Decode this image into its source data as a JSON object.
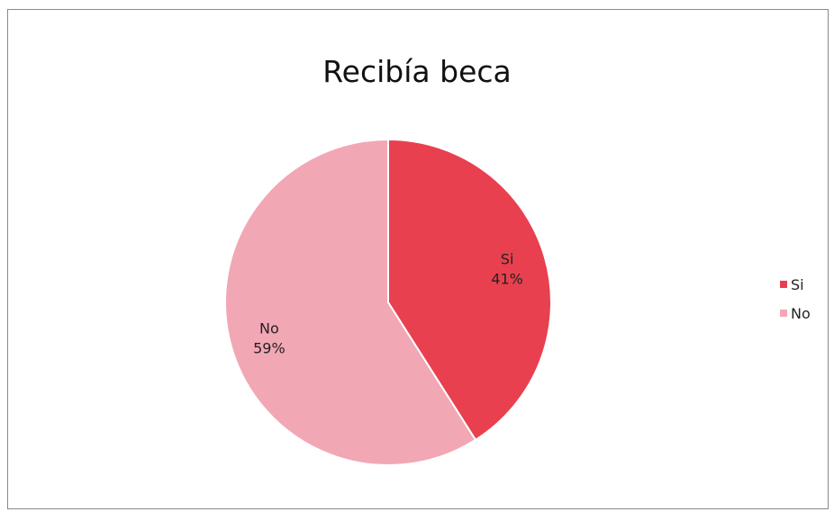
{
  "chart_data": {
    "type": "pie",
    "title": "Recibía beca",
    "slices": [
      {
        "label": "Si",
        "value": 41,
        "value_label": "41%",
        "color": "#e8404f"
      },
      {
        "label": "No",
        "value": 59,
        "value_label": "59%",
        "color": "#f2a7b5"
      }
    ],
    "legend": {
      "position": "right",
      "items": [
        {
          "label": "Si",
          "color": "#e8404f"
        },
        {
          "label": "No",
          "color": "#f2a7b5"
        }
      ]
    }
  }
}
